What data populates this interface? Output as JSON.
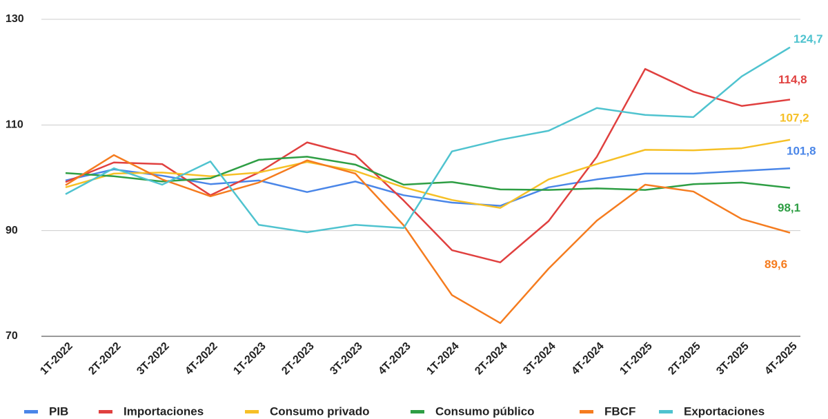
{
  "chart_data": {
    "type": "line",
    "categories": [
      "1T-2022",
      "2T-2022",
      "3T-2022",
      "4T-2022",
      "1T-2023",
      "2T-2023",
      "3T-2023",
      "4T-2023",
      "1T-2024",
      "2T-2024",
      "3T-2024",
      "4T-2024",
      "1T-2025",
      "2T-2025",
      "3T-2025",
      "4T-2025"
    ],
    "series": [
      {
        "name": "PIB",
        "color": "#4a86e8",
        "values": [
          99.5,
          101.6,
          100.4,
          98.8,
          99.5,
          97.3,
          99.3,
          96.7,
          95.3,
          94.7,
          98.2,
          99.7,
          100.8,
          100.8,
          101.3,
          101.8
        ],
        "value_labels": [
          null,
          null,
          null,
          null,
          null,
          null,
          null,
          null,
          null,
          null,
          null,
          null,
          null,
          null,
          null,
          "101,8"
        ]
      },
      {
        "name": "Importaciones",
        "color": "#e0403f",
        "values": [
          99.2,
          102.9,
          102.6,
          96.7,
          101.0,
          106.7,
          104.3,
          95.7,
          86.3,
          84.0,
          91.8,
          104.0,
          120.6,
          116.3,
          113.6,
          114.8
        ],
        "value_labels": [
          null,
          null,
          null,
          null,
          null,
          null,
          null,
          null,
          null,
          null,
          null,
          null,
          null,
          null,
          null,
          "114,8"
        ]
      },
      {
        "name": "Consumo privado",
        "color": "#f6c026",
        "values": [
          98.2,
          100.8,
          101.0,
          100.3,
          101.0,
          103.0,
          101.3,
          98.2,
          95.8,
          94.3,
          99.7,
          102.6,
          105.3,
          105.2,
          105.6,
          107.2
        ],
        "value_labels": [
          null,
          null,
          null,
          null,
          null,
          null,
          null,
          null,
          null,
          null,
          null,
          null,
          null,
          null,
          null,
          "107,2"
        ]
      },
      {
        "name": "Consumo público",
        "color": "#2e9e44",
        "values": [
          100.9,
          100.3,
          99.3,
          99.9,
          103.4,
          104.0,
          102.5,
          98.7,
          99.2,
          97.8,
          97.7,
          98.0,
          97.7,
          98.8,
          99.1,
          98.1
        ],
        "value_labels": [
          null,
          null,
          null,
          null,
          null,
          null,
          null,
          null,
          null,
          null,
          null,
          null,
          null,
          null,
          null,
          "98,1"
        ]
      },
      {
        "name": "FBCF",
        "color": "#f57c1f",
        "values": [
          98.6,
          104.3,
          99.7,
          96.5,
          99.1,
          103.3,
          100.8,
          91.0,
          77.8,
          72.5,
          82.8,
          91.9,
          98.7,
          97.4,
          92.2,
          89.6
        ],
        "value_labels": [
          null,
          null,
          null,
          null,
          null,
          null,
          null,
          null,
          null,
          null,
          null,
          null,
          null,
          null,
          null,
          "89,6"
        ]
      },
      {
        "name": "Exportaciones",
        "color": "#4fc3cf",
        "values": [
          96.9,
          101.8,
          98.7,
          103.1,
          91.1,
          89.7,
          91.1,
          90.5,
          105.0,
          107.2,
          108.9,
          113.2,
          111.9,
          111.5,
          119.2,
          124.7
        ],
        "value_labels": [
          null,
          null,
          null,
          null,
          null,
          null,
          null,
          null,
          null,
          null,
          null,
          null,
          null,
          null,
          null,
          "124,7"
        ]
      }
    ],
    "ylim": [
      70,
      130
    ],
    "yticks": [
      70,
      90,
      110,
      130
    ],
    "grid": true,
    "legend": "bottom"
  }
}
